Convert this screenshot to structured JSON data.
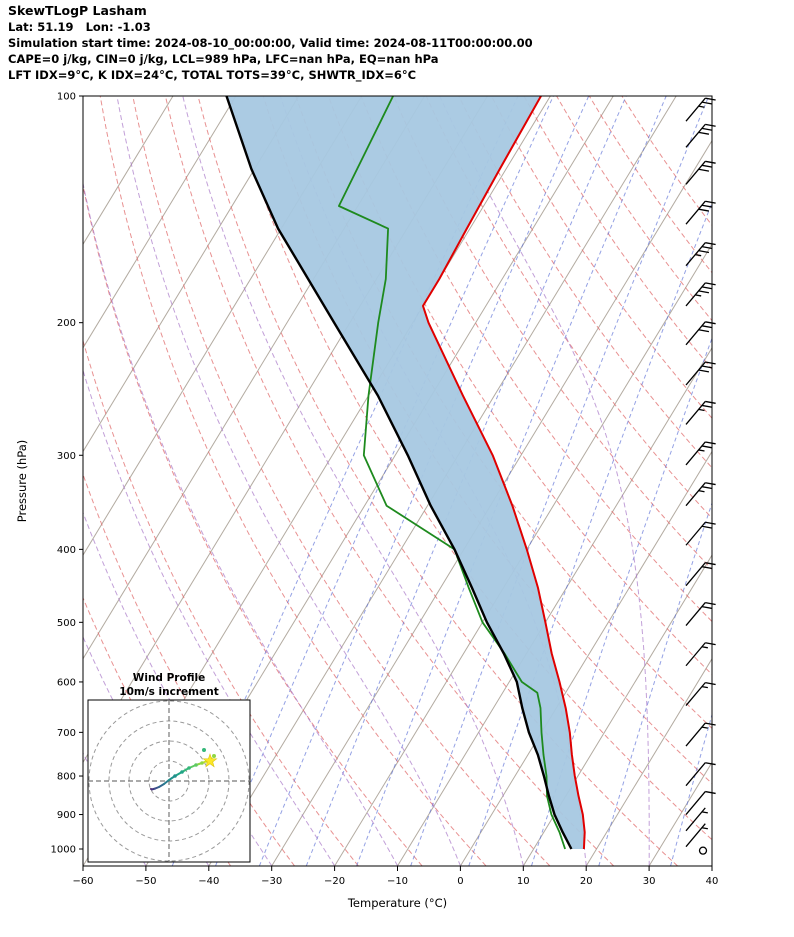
{
  "header": {
    "title": "SkewTLogP Lasham",
    "lat_lon": "Lat: 51.19   Lon: -1.03",
    "times": "Simulation start time: 2024-08-10_00:00:00, Valid time: 2024-08-11T00:00:00.00",
    "stability": "CAPE=0 j/kg, CIN=0 j/kg, LCL=989 hPa, LFC=nan hPa, EQ=nan hPa",
    "indices": "LFT IDX=9°C, K IDX=24°C, TOTAL TOTS=39°C, SHWTR_IDX=6°C"
  },
  "chart_data": {
    "type": "skewt_logp",
    "xlabel": "Temperature (°C)",
    "ylabel": "Pressure (hPa)",
    "xlim": [
      -60,
      40
    ],
    "pressure_lim_hpa": [
      100,
      1053
    ],
    "x_tick_values": [
      -60,
      -50,
      -40,
      -30,
      -20,
      -10,
      0,
      10,
      20,
      30,
      40
    ],
    "x_tick_labels": [
      "−60",
      "−50",
      "−40",
      "−30",
      "−20",
      "−10",
      "0",
      "10",
      "20",
      "30",
      "40"
    ],
    "pressure_ticks": [
      100,
      200,
      300,
      400,
      500,
      600,
      700,
      800,
      900,
      1000
    ],
    "temperature_profile": {
      "pressure_hpa": [
        1000,
        950,
        900,
        850,
        800,
        750,
        700,
        650,
        600,
        550,
        500,
        450,
        400,
        350,
        300,
        250,
        200,
        190,
        175,
        150,
        125,
        100
      ],
      "temp_c": [
        18,
        16.5,
        14.5,
        12,
        9.5,
        7,
        4.5,
        1.5,
        -2,
        -6,
        -10,
        -14.5,
        -20,
        -26.5,
        -34.5,
        -45,
        -57.5,
        -60,
        -60,
        -60.5,
        -61,
        -61.5
      ]
    },
    "dewpoint_profile": {
      "pressure_hpa": [
        1000,
        950,
        900,
        850,
        800,
        750,
        700,
        650,
        620,
        600,
        550,
        500,
        450,
        400,
        350,
        300,
        250,
        200,
        175,
        150,
        140,
        100
      ],
      "temp_c": [
        15,
        12.5,
        9.5,
        7,
        5,
        2.5,
        0,
        -2.5,
        -4.5,
        -8,
        -13.5,
        -20,
        -25.5,
        -31.5,
        -46.5,
        -55,
        -60,
        -65.5,
        -68.5,
        -73,
        -83,
        -85
      ]
    },
    "parcel_profile": {
      "pressure_hpa": [
        1000,
        950,
        900,
        850,
        800,
        750,
        700,
        650,
        600,
        550,
        500,
        450,
        400,
        350,
        300,
        250,
        200,
        150,
        125,
        100
      ],
      "temp_c": [
        16,
        13,
        10,
        7.3,
        4.6,
        1.6,
        -2,
        -5.4,
        -8.8,
        -13.6,
        -19.3,
        -25,
        -31.5,
        -39.5,
        -48,
        -58.5,
        -72.5,
        -90.5,
        -100.5,
        -111.5
      ]
    },
    "background": {
      "isotherms_c": {
        "min": -120,
        "max": 40,
        "step": 10
      },
      "dry_adiabats_c": {
        "min": -40,
        "max": 160,
        "step": 10
      },
      "moist_adiabats_c": {
        "min": -60,
        "max": 30,
        "step": 10
      },
      "mixing_ratio_g_kg": [
        0.06,
        0.125,
        0.25,
        0.5,
        1,
        2,
        4,
        8,
        16,
        32
      ]
    },
    "colors": {
      "temperature": "#e00000",
      "dewpoint": "#1e8a1e",
      "parcel": "#000000",
      "shade": "#a6c8e2",
      "isotherm": "#b3aba1",
      "dry_adiabat": "#e06c6c",
      "moist_adiabat": "#a878c8",
      "mixing_ratio": "#5a6ed6"
    },
    "wind_barbs": {
      "calm_pressure_hpa": 1005,
      "pressure_hpa": [
        993,
        946,
        900,
        824,
        730,
        645,
        571,
        505,
        447,
        395,
        350,
        309,
        273,
        242,
        214,
        190,
        168,
        148,
        131,
        117,
        108
      ],
      "speed_kt": [
        5,
        5,
        10,
        10,
        15,
        15,
        15,
        20,
        20,
        20,
        25,
        25,
        25,
        30,
        30,
        35,
        35,
        30,
        30,
        30,
        25
      ]
    },
    "hodograph": {
      "title": "Wind Profile",
      "subtitle": "10m/s increment",
      "ring_step_ms": 10,
      "trace_uv_ms": [
        {
          "u": -9,
          "v": -4,
          "c": "#440154"
        },
        {
          "u": -8.5,
          "v": -4.2,
          "c": "#471d6c"
        },
        {
          "u": -7,
          "v": -3.8,
          "c": "#453781"
        },
        {
          "u": -5,
          "v": -3,
          "c": "#3b528b"
        },
        {
          "u": -2.5,
          "v": -1.5,
          "c": "#31688e"
        },
        {
          "u": 0,
          "v": 0.5,
          "c": "#287c8e"
        },
        {
          "u": 3,
          "v": 2.5,
          "c": "#21918c"
        },
        {
          "u": 6.5,
          "v": 4.5,
          "c": "#20a486"
        },
        {
          "u": 10,
          "v": 6.5,
          "c": "#35b779"
        },
        {
          "u": 13.5,
          "v": 8,
          "c": "#5ec962"
        },
        {
          "u": 16.5,
          "v": 9,
          "c": "#90d743"
        },
        {
          "u": 19,
          "v": 10,
          "c": "#c8e020"
        },
        {
          "u": 21,
          "v": 11,
          "c": "#fde725"
        }
      ],
      "star_marker": {
        "u": 20.5,
        "v": 10,
        "c": "#fde725"
      },
      "extra_markers": [
        {
          "u": 22.5,
          "v": 12.5,
          "c": "#90d743"
        },
        {
          "u": 17.5,
          "v": 15.5,
          "c": "#35b779"
        }
      ]
    }
  }
}
